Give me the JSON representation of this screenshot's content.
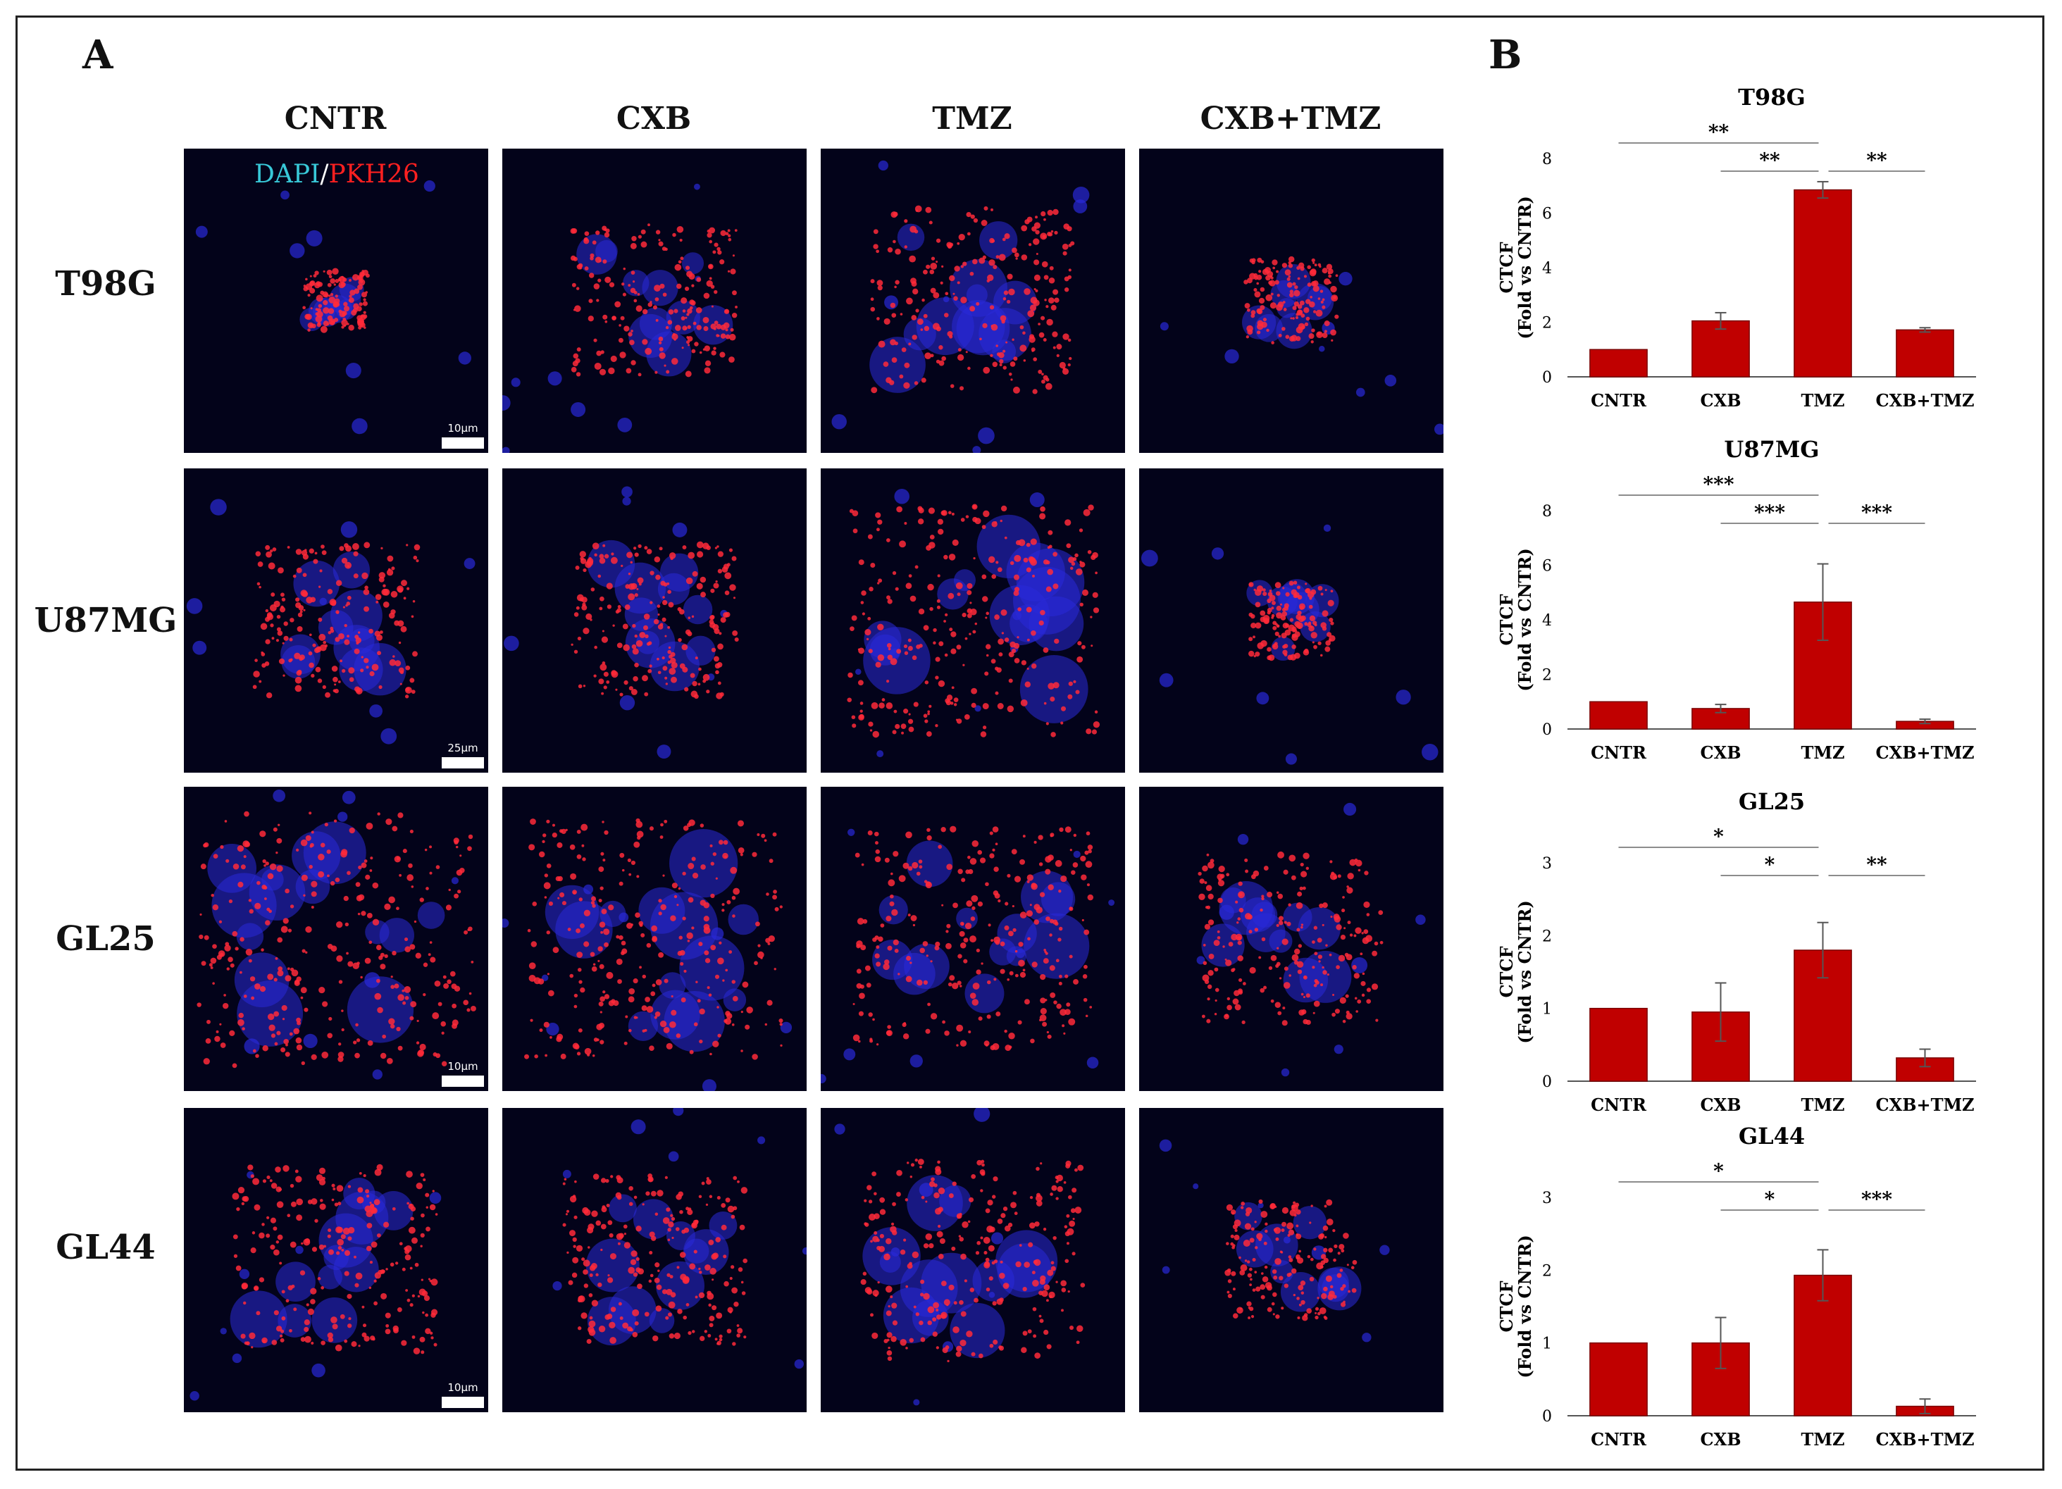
{
  "panel_a_label": "A",
  "panel_b_label": "B",
  "columns": [
    "CNTR",
    "CXB",
    "TMZ",
    "CXB+TMZ"
  ],
  "rows": [
    "T98G",
    "U87MG",
    "GL25",
    "GL44"
  ],
  "stain_legend": {
    "dapi": "DAPI",
    "sep": "/",
    "pkh": "PKH26",
    "dapi_color": "#38c8d8",
    "pkh_color": "#ff2020"
  },
  "scale_bars": [
    "10µm",
    "25µm",
    "10µm",
    "10µm"
  ],
  "colors": {
    "bar": "#c00000",
    "nucleus": "#2a2ad8",
    "membrane": "#ff2a3a",
    "background": "#03031a"
  },
  "chart_data": [
    {
      "type": "bar",
      "title": "T98G",
      "ylabel": "CTCF\n(Fold vs CNTR)",
      "categories": [
        "CNTR",
        "CXB",
        "TMZ",
        "CXB+TMZ"
      ],
      "values": [
        1.0,
        2.05,
        6.85,
        1.72
      ],
      "errors": [
        0.0,
        0.3,
        0.3,
        0.08
      ],
      "ylim": [
        0,
        8
      ],
      "yticks": [
        0,
        2,
        4,
        6,
        8
      ],
      "significance": [
        {
          "from": 0,
          "to": 2,
          "label": "**"
        },
        {
          "from": 1,
          "to": 2,
          "label": "**"
        },
        {
          "from": 2,
          "to": 3,
          "label": "**"
        }
      ]
    },
    {
      "type": "bar",
      "title": "U87MG",
      "ylabel": "CTCF\n(Fold vs CNTR)",
      "categories": [
        "CNTR",
        "CXB",
        "TMZ",
        "CXB+TMZ"
      ],
      "values": [
        1.0,
        0.75,
        4.65,
        0.28
      ],
      "errors": [
        0.0,
        0.15,
        1.4,
        0.08
      ],
      "ylim": [
        0,
        8
      ],
      "yticks": [
        0,
        2,
        4,
        6,
        8
      ],
      "significance": [
        {
          "from": 0,
          "to": 2,
          "label": "***"
        },
        {
          "from": 1,
          "to": 2,
          "label": "***"
        },
        {
          "from": 2,
          "to": 3,
          "label": "***"
        }
      ]
    },
    {
      "type": "bar",
      "title": "GL25",
      "ylabel": "CTCF\n(Fold vs CNTR)",
      "categories": [
        "CNTR",
        "CXB",
        "TMZ",
        "CXB+TMZ"
      ],
      "values": [
        1.0,
        0.95,
        1.8,
        0.32
      ],
      "errors": [
        0.0,
        0.4,
        0.38,
        0.12
      ],
      "ylim": [
        0,
        3
      ],
      "yticks": [
        0,
        1,
        2,
        3
      ],
      "significance": [
        {
          "from": 0,
          "to": 2,
          "label": "*"
        },
        {
          "from": 1,
          "to": 2,
          "label": "*"
        },
        {
          "from": 2,
          "to": 3,
          "label": "**"
        }
      ]
    },
    {
      "type": "bar",
      "title": "GL44",
      "ylabel": "CTCF\n(Fold vs CNTR)",
      "categories": [
        "CNTR",
        "CXB",
        "TMZ",
        "CXB+TMZ"
      ],
      "values": [
        1.0,
        1.0,
        1.93,
        0.13
      ],
      "errors": [
        0.0,
        0.35,
        0.35,
        0.1
      ],
      "ylim": [
        0,
        3
      ],
      "yticks": [
        0,
        1,
        2,
        3
      ],
      "significance": [
        {
          "from": 0,
          "to": 2,
          "label": "*"
        },
        {
          "from": 1,
          "to": 2,
          "label": "*"
        },
        {
          "from": 2,
          "to": 3,
          "label": "***"
        }
      ]
    }
  ]
}
